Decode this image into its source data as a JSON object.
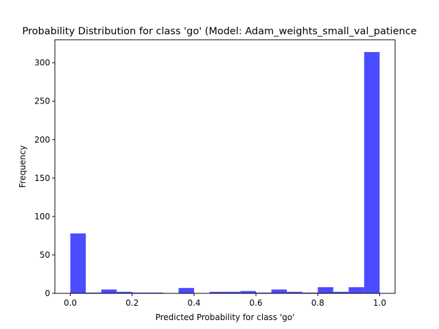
{
  "chart_data": {
    "type": "bar",
    "title": "Probability Distribution for class 'go' (Model: Adam_weights_small_val_patience",
    "xlabel": "Predicted Probability for class 'go'",
    "ylabel": "Frequency",
    "xlim": [
      -0.05,
      1.05
    ],
    "ylim": [
      0,
      330
    ],
    "x_ticks": [
      0.0,
      0.2,
      0.4,
      0.6,
      0.8,
      1.0
    ],
    "x_tick_labels": [
      "0.0",
      "0.2",
      "0.4",
      "0.6",
      "0.8",
      "1.0"
    ],
    "y_ticks": [
      0,
      50,
      100,
      150,
      200,
      250,
      300
    ],
    "y_tick_labels": [
      "0",
      "50",
      "100",
      "150",
      "200",
      "250",
      "300"
    ],
    "bin_edges": [
      0.0,
      0.05,
      0.1,
      0.15,
      0.2,
      0.25,
      0.3,
      0.35,
      0.4,
      0.45,
      0.5,
      0.55,
      0.6,
      0.65,
      0.7,
      0.75,
      0.8,
      0.85,
      0.9,
      0.95,
      1.0
    ],
    "values": [
      78,
      1,
      5,
      2,
      1,
      1,
      0,
      7,
      0,
      2,
      2,
      3,
      1,
      5,
      2,
      1,
      8,
      2,
      8,
      314
    ],
    "color": "#4b4bff",
    "grid": false
  }
}
